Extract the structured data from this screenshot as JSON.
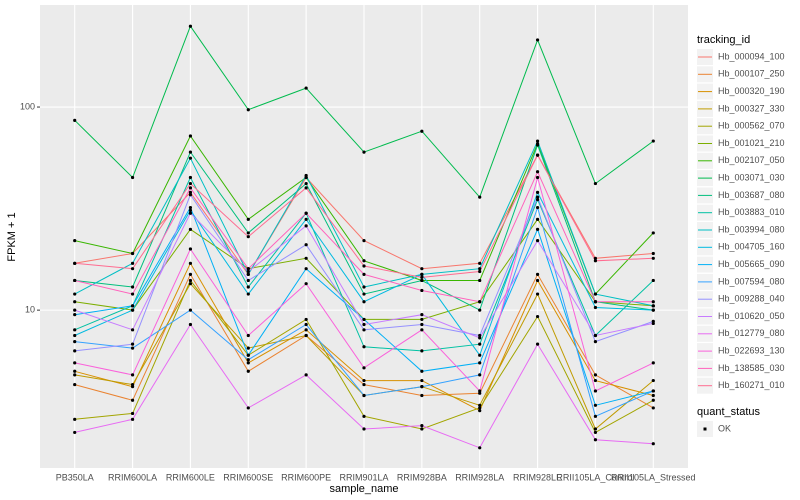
{
  "chart_data": {
    "type": "line",
    "x_label": "sample_name",
    "y_label": "FPKM + 1",
    "categories": [
      "PB350LA",
      "RRIM600LA",
      "RRIM600LE",
      "RRIM600SE",
      "RRIM600PE",
      "RRIM901LA",
      "RRIM928BA",
      "RRIM928LA",
      "RRIM928LE",
      "RRII105LA_Control",
      "RRII105LA_Stressed"
    ],
    "log_y": true,
    "ylim": [
      1.67,
      318
    ],
    "yticks": [
      10,
      100
    ],
    "grid": true,
    "legend_title": "tracking_id",
    "legend_position": "right",
    "shape_legend": {
      "title": "quant_status",
      "labels": [
        "OK"
      ]
    },
    "series": [
      {
        "name": "Hb_000094_100",
        "color": "#F8766D",
        "values": [
          17,
          19,
          38,
          15,
          45,
          22,
          16,
          17,
          58,
          18,
          19
        ]
      },
      {
        "name": "Hb_000107_250",
        "color": "#EA8331",
        "values": [
          4.3,
          3.6,
          15,
          5,
          7.5,
          4.3,
          3.8,
          3.9,
          15,
          4.8,
          3.3
        ]
      },
      {
        "name": "Hb_000320_190",
        "color": "#D89000",
        "values": [
          5,
          4.2,
          17,
          5.5,
          8,
          4.5,
          4.5,
          3.2,
          14,
          4.5,
          3.8
        ]
      },
      {
        "name": "Hb_000327_330",
        "color": "#C09B00",
        "values": [
          4.8,
          4.3,
          13.5,
          6.5,
          7.5,
          3.8,
          4.2,
          3.4,
          12,
          2.6,
          4.5
        ]
      },
      {
        "name": "Hb_000562_070",
        "color": "#A3A500",
        "values": [
          2.9,
          3.1,
          14,
          6,
          9,
          3,
          2.6,
          3.3,
          9.3,
          2.5,
          3.6
        ]
      },
      {
        "name": "Hb_001021_210",
        "color": "#7CAE00",
        "values": [
          11,
          10,
          25,
          16,
          18,
          9,
          9,
          11,
          28,
          11,
          10.5
        ]
      },
      {
        "name": "Hb_002107_050",
        "color": "#39B600",
        "values": [
          22,
          19,
          72,
          28,
          45,
          17.5,
          14,
          14,
          66,
          12,
          24
        ]
      },
      {
        "name": "Hb_003071_030",
        "color": "#00BB4E",
        "values": [
          86,
          45,
          250,
          97,
          124,
          60,
          76,
          36,
          214,
          42,
          68
        ]
      },
      {
        "name": "Hb_003687_080",
        "color": "#00BF7D",
        "values": [
          14,
          13,
          60,
          24,
          42,
          12,
          14,
          10,
          65,
          11,
          10
        ]
      },
      {
        "name": "Hb_003883_010",
        "color": "#00C1A3",
        "values": [
          8,
          10.5,
          45,
          13,
          30,
          6.6,
          6.3,
          6.8,
          35,
          7.5,
          14
        ]
      },
      {
        "name": "Hb_003994_080",
        "color": "#00BFC4",
        "values": [
          12,
          17,
          56,
          15,
          46,
          13,
          15,
          16,
          68,
          12,
          10.5
        ]
      },
      {
        "name": "Hb_004705_160",
        "color": "#00BAE0",
        "values": [
          7.5,
          10,
          31,
          12,
          28,
          11,
          15,
          6,
          38,
          10.3,
          10
        ]
      },
      {
        "name": "Hb_005665_090",
        "color": "#00B0F6",
        "values": [
          9.5,
          10.5,
          32,
          6,
          16,
          9,
          5,
          5.5,
          25,
          3.4,
          4
        ]
      },
      {
        "name": "Hb_007594_080",
        "color": "#35A2FF",
        "values": [
          7,
          6.5,
          10,
          5.7,
          8.5,
          3.8,
          4.2,
          4.8,
          32,
          3,
          4
        ]
      },
      {
        "name": "Hb_009288_040",
        "color": "#9590FF",
        "values": [
          6.3,
          6.8,
          37,
          14,
          21,
          8,
          8.5,
          7.5,
          36,
          7,
          8.8
        ]
      },
      {
        "name": "Hb_010620_050",
        "color": "#C77CFF",
        "values": [
          10,
          8,
          30,
          15.5,
          26,
          8.5,
          9.5,
          7.3,
          22,
          7.5,
          8.6
        ]
      },
      {
        "name": "Hb_012779_080",
        "color": "#E76BF3",
        "values": [
          2.5,
          2.9,
          8.5,
          3.3,
          4.8,
          2.6,
          2.7,
          2.1,
          6.8,
          2.3,
          2.2
        ]
      },
      {
        "name": "Hb_022693_130",
        "color": "#FA62DB",
        "values": [
          5.5,
          4.8,
          20,
          7.5,
          13.5,
          5.2,
          8,
          4,
          45,
          4,
          5.5
        ]
      },
      {
        "name": "Hb_138585_030",
        "color": "#FF62BC",
        "values": [
          14,
          12,
          40,
          16,
          30,
          15,
          12.5,
          11,
          48,
          11,
          11
        ]
      },
      {
        "name": "Hb_160271_010",
        "color": "#FF6C91",
        "values": [
          17,
          16,
          42,
          23,
          40,
          16.5,
          14.5,
          15.5,
          58,
          17.5,
          18
        ]
      }
    ]
  }
}
